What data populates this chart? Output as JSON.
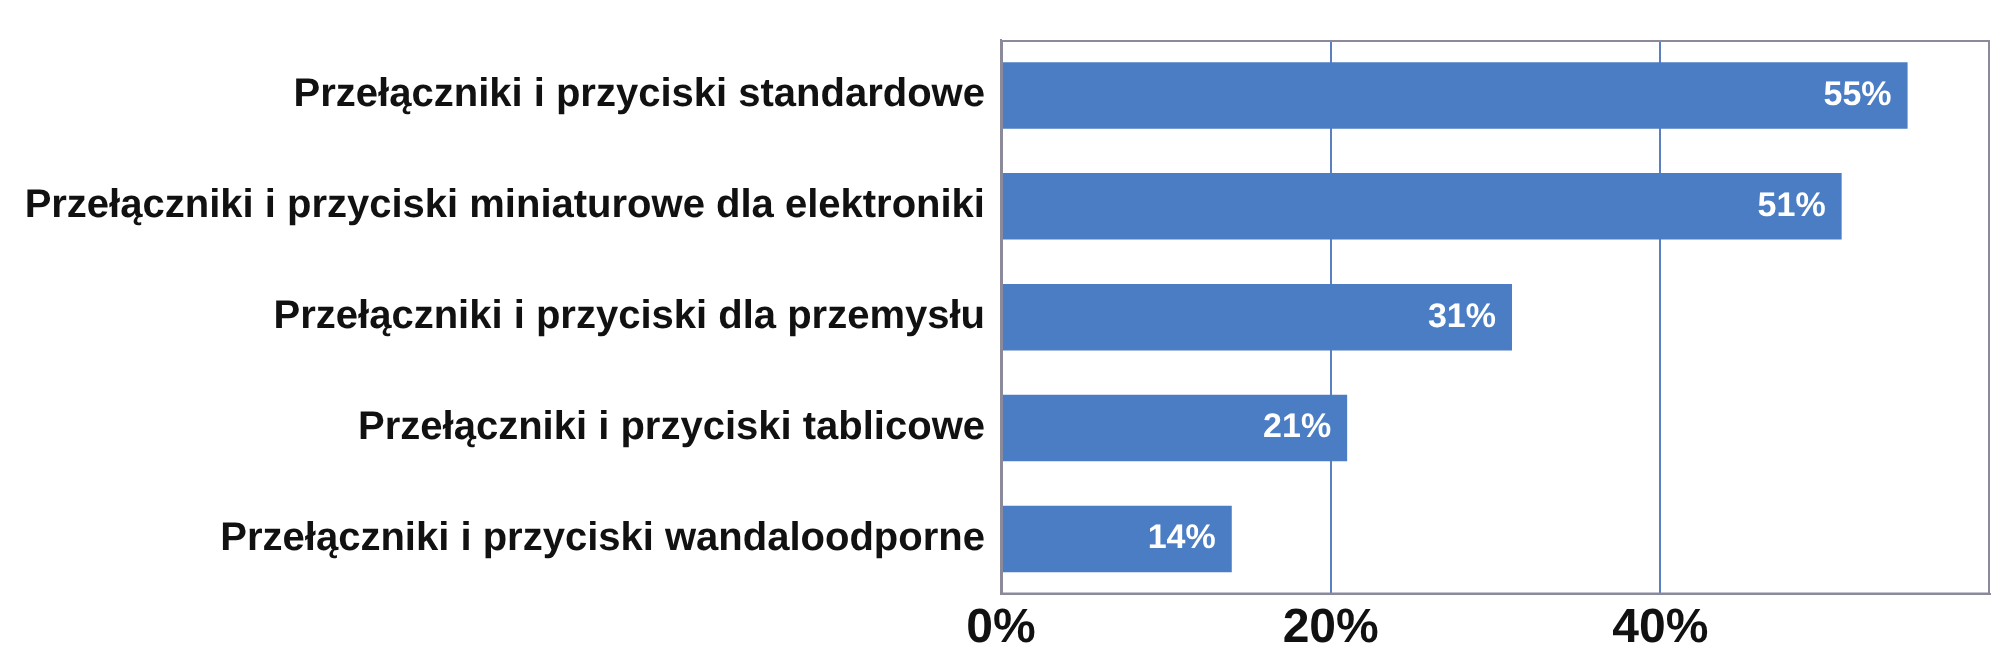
{
  "chart_data": {
    "type": "bar",
    "orientation": "horizontal",
    "categories": [
      "Przełączniki i przyciski standardowe",
      "Przełączniki i przyciski miniaturowe dla elektroniki",
      "Przełączniki i przyciski dla przemysłu",
      "Przełączniki i przyciski tablicowe",
      "Przełączniki i przyciski wandaloodporne"
    ],
    "values": [
      55,
      51,
      31,
      21,
      14
    ],
    "value_labels": [
      "55%",
      "51%",
      "31%",
      "21%",
      "14%"
    ],
    "color": "#4a7dc4",
    "xlim": [
      0,
      60
    ],
    "xticks": [
      {
        "value": 0,
        "label": "0%"
      },
      {
        "value": 20,
        "label": "20%"
      },
      {
        "value": 40,
        "label": "40%"
      }
    ],
    "grid": "x",
    "legend": false
  }
}
